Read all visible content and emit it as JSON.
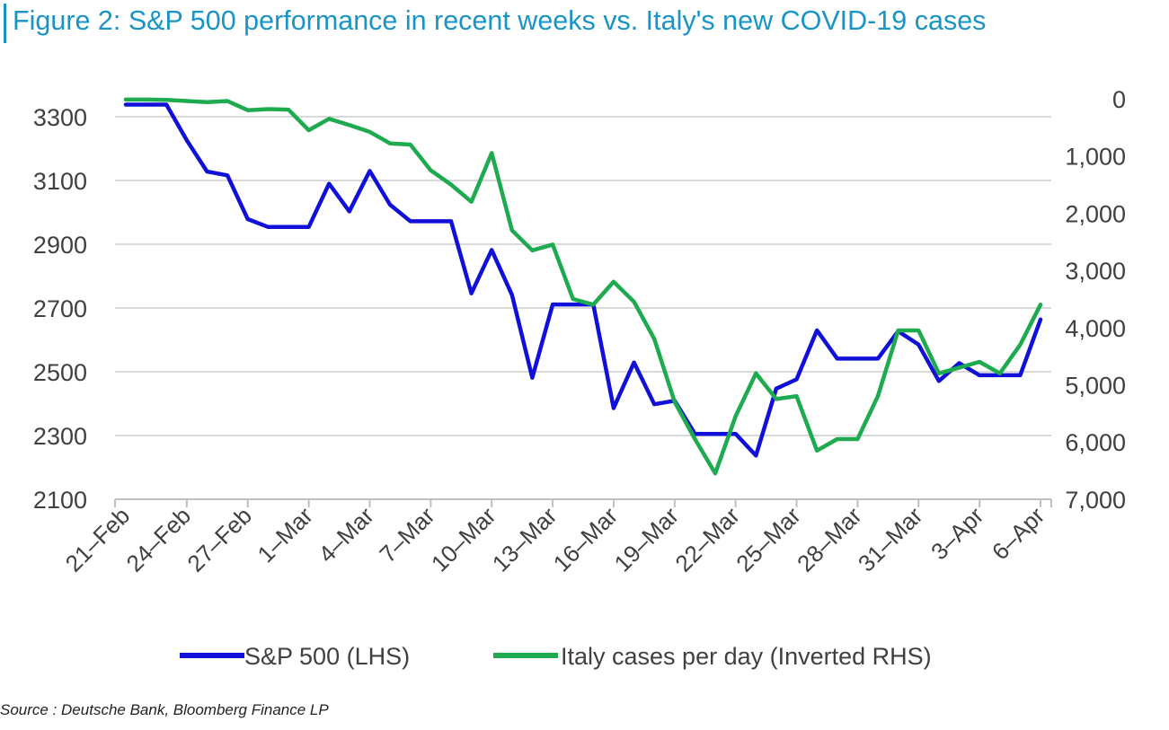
{
  "title": "Figure 2: S&P 500 performance in recent weeks vs. Italy's new COVID-19 cases",
  "source": "Source : Deutsche Bank, Bloomberg Finance LP",
  "colors": {
    "title": "#1a94c6",
    "sp500": "#1010d8",
    "italy": "#1eaa4e",
    "grid": "#d9d9d9",
    "axis": "#bfbfbf",
    "text": "#404040"
  },
  "chart_data": {
    "type": "line",
    "title": "Figure 2: S&P 500 performance in recent weeks vs. Italy's new COVID-19 cases",
    "grid": true,
    "legend_position": "bottom-center",
    "x_tick_labels": [
      "21–Feb",
      "24–Feb",
      "27–Feb",
      "1–Mar",
      "4–Mar",
      "7–Mar",
      "10–Mar",
      "13–Mar",
      "16–Mar",
      "19–Mar",
      "22–Mar",
      "25–Mar",
      "28–Mar",
      "31–Mar",
      "3–Apr",
      "6–Apr"
    ],
    "x_tick_index": [
      0,
      3,
      6,
      9,
      12,
      15,
      18,
      21,
      24,
      27,
      30,
      33,
      36,
      39,
      42,
      45
    ],
    "y_left": {
      "label": "",
      "lim": [
        2100,
        3350
      ],
      "ticks": [
        2100,
        2300,
        2500,
        2700,
        2900,
        3100,
        3300
      ]
    },
    "y_right": {
      "label": "",
      "inverted": true,
      "lim": [
        0,
        7000
      ],
      "ticks": [
        0,
        1000,
        2000,
        3000,
        4000,
        5000,
        6000,
        7000
      ],
      "tick_labels": [
        "0",
        "1,000",
        "2,000",
        "3,000",
        "4,000",
        "5,000",
        "6,000",
        "7,000"
      ]
    },
    "x_dates": [
      "21-Feb",
      "22-Feb",
      "23-Feb",
      "24-Feb",
      "25-Feb",
      "26-Feb",
      "27-Feb",
      "28-Feb",
      "29-Feb",
      "1-Mar",
      "2-Mar",
      "3-Mar",
      "4-Mar",
      "5-Mar",
      "6-Mar",
      "7-Mar",
      "8-Mar",
      "9-Mar",
      "10-Mar",
      "11-Mar",
      "12-Mar",
      "13-Mar",
      "14-Mar",
      "15-Mar",
      "16-Mar",
      "17-Mar",
      "18-Mar",
      "19-Mar",
      "20-Mar",
      "21-Mar",
      "22-Mar",
      "23-Mar",
      "24-Mar",
      "25-Mar",
      "26-Mar",
      "27-Mar",
      "28-Mar",
      "29-Mar",
      "30-Mar",
      "31-Mar",
      "1-Apr",
      "2-Apr",
      "3-Apr",
      "4-Apr",
      "5-Apr",
      "6-Apr"
    ],
    "series": [
      {
        "name": "S&P 500 (LHS)",
        "axis": "left",
        "values": [
          3338,
          3338,
          3338,
          3226,
          3128,
          3116,
          2979,
          2954,
          2954,
          2954,
          3090,
          3003,
          3130,
          3024,
          2972,
          2972,
          2972,
          2746,
          2882,
          2741,
          2481,
          2711,
          2711,
          2711,
          2386,
          2529,
          2398,
          2409,
          2305,
          2305,
          2305,
          2237,
          2447,
          2476,
          2630,
          2541,
          2541,
          2541,
          2627,
          2585,
          2471,
          2527,
          2489,
          2489,
          2489,
          2664
        ]
      },
      {
        "name": "Italy cases per day (Inverted RHS)",
        "axis": "right",
        "values": [
          14,
          14,
          20,
          40,
          60,
          40,
          200,
          180,
          190,
          550,
          350,
          460,
          580,
          780,
          800,
          1250,
          1500,
          1800,
          950,
          2300,
          2650,
          2550,
          3500,
          3600,
          3200,
          3550,
          4200,
          5300,
          5950,
          6550,
          5550,
          4800,
          5250,
          5200,
          6150,
          5950,
          5950,
          5200,
          4050,
          4050,
          4800,
          4700,
          4600,
          4800,
          4300,
          3600
        ]
      }
    ]
  }
}
